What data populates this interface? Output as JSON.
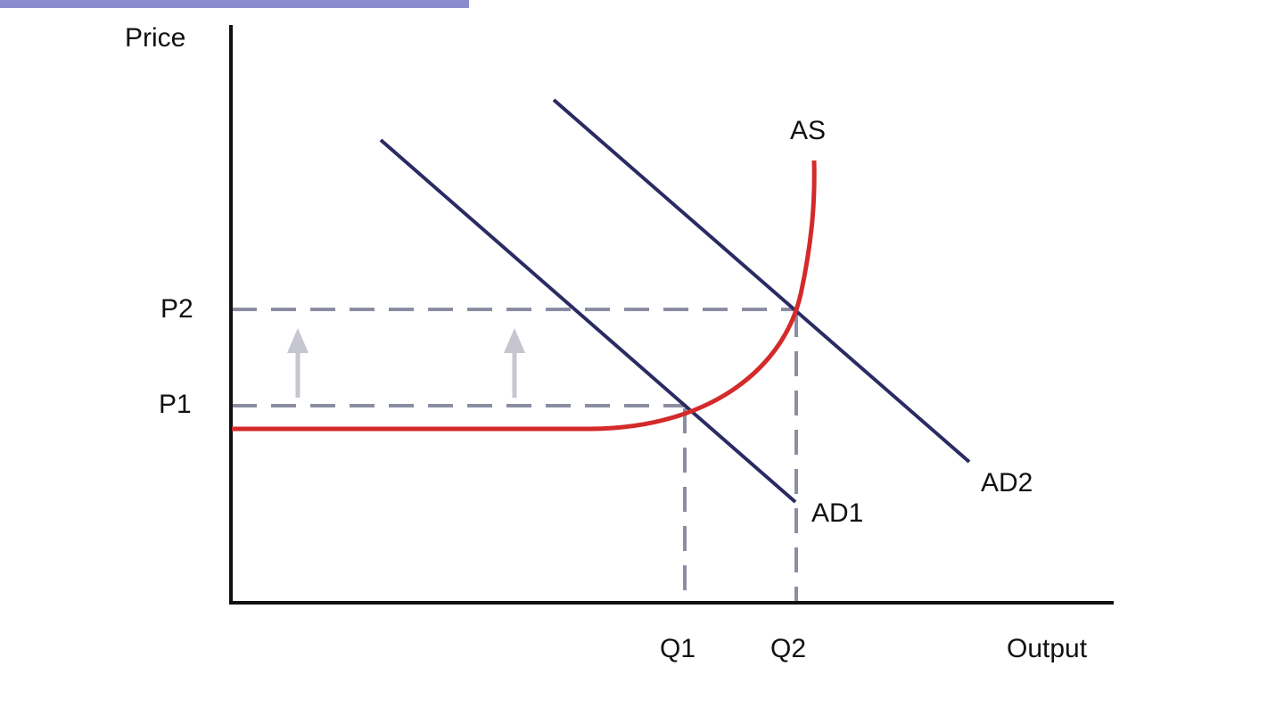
{
  "labels": {
    "y_axis": "Price",
    "x_axis": "Output",
    "p1": "P1",
    "p2": "P2",
    "q1": "Q1",
    "q2": "Q2",
    "as": "AS",
    "ad1": "AD1",
    "ad2": "AD2"
  },
  "colors": {
    "top_bar": "#8a8ccf",
    "axis": "#111111",
    "demand": "#2b2b63",
    "supply": "#d42a2a",
    "guide": "#8b8ea3",
    "arrow": "#c5c6cf"
  }
}
